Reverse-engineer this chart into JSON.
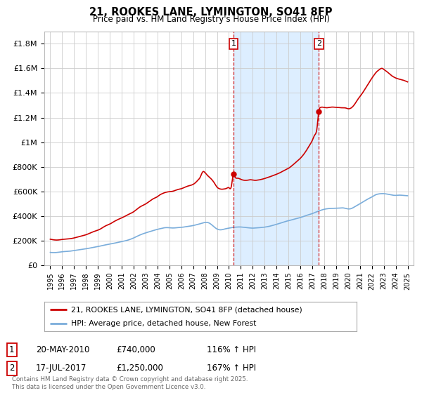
{
  "title": "21, ROOKES LANE, LYMINGTON, SO41 8FP",
  "subtitle": "Price paid vs. HM Land Registry's House Price Index (HPI)",
  "ylabel_ticks": [
    "£0",
    "£200K",
    "£400K",
    "£600K",
    "£800K",
    "£1M",
    "£1.2M",
    "£1.4M",
    "£1.6M",
    "£1.8M"
  ],
  "ytick_values": [
    0,
    200000,
    400000,
    600000,
    800000,
    1000000,
    1200000,
    1400000,
    1600000,
    1800000
  ],
  "ylim": [
    0,
    1900000
  ],
  "xlim_start": 1994.5,
  "xlim_end": 2025.5,
  "sale1_x": 2010.38,
  "sale1_y": 740000,
  "sale2_x": 2017.54,
  "sale2_y": 1250000,
  "legend_line1": "21, ROOKES LANE, LYMINGTON, SO41 8FP (detached house)",
  "legend_line2": "HPI: Average price, detached house, New Forest",
  "annotation1_date": "20-MAY-2010",
  "annotation1_price": "£740,000",
  "annotation1_hpi": "116% ↑ HPI",
  "annotation2_date": "17-JUL-2017",
  "annotation2_price": "£1,250,000",
  "annotation2_hpi": "167% ↑ HPI",
  "footer": "Contains HM Land Registry data © Crown copyright and database right 2025.\nThis data is licensed under the Open Government Licence v3.0.",
  "line1_color": "#cc0000",
  "line2_color": "#7aaddb",
  "shade_color": "#ddeeff",
  "background_color": "#ffffff",
  "grid_color": "#cccccc",
  "hpi_anchors": [
    [
      1995.0,
      105000
    ],
    [
      1995.3,
      103000
    ],
    [
      1995.7,
      106000
    ],
    [
      1996.0,
      110000
    ],
    [
      1996.5,
      113000
    ],
    [
      1997.0,
      120000
    ],
    [
      1997.5,
      127000
    ],
    [
      1998.0,
      134000
    ],
    [
      1998.5,
      143000
    ],
    [
      1999.0,
      152000
    ],
    [
      1999.5,
      163000
    ],
    [
      2000.0,
      172000
    ],
    [
      2000.5,
      182000
    ],
    [
      2001.0,
      192000
    ],
    [
      2001.5,
      204000
    ],
    [
      2002.0,
      222000
    ],
    [
      2002.5,
      245000
    ],
    [
      2003.0,
      263000
    ],
    [
      2003.5,
      278000
    ],
    [
      2004.0,
      292000
    ],
    [
      2004.3,
      299000
    ],
    [
      2004.6,
      305000
    ],
    [
      2005.0,
      305000
    ],
    [
      2005.3,
      303000
    ],
    [
      2005.6,
      305000
    ],
    [
      2006.0,
      308000
    ],
    [
      2006.3,
      312000
    ],
    [
      2006.6,
      316000
    ],
    [
      2007.0,
      323000
    ],
    [
      2007.3,
      330000
    ],
    [
      2007.6,
      338000
    ],
    [
      2008.0,
      348000
    ],
    [
      2008.3,
      345000
    ],
    [
      2008.6,
      325000
    ],
    [
      2009.0,
      295000
    ],
    [
      2009.3,
      288000
    ],
    [
      2009.5,
      291000
    ],
    [
      2009.7,
      296000
    ],
    [
      2010.0,
      302000
    ],
    [
      2010.3,
      307000
    ],
    [
      2010.6,
      310000
    ],
    [
      2011.0,
      311000
    ],
    [
      2011.3,
      308000
    ],
    [
      2011.6,
      305000
    ],
    [
      2012.0,
      302000
    ],
    [
      2012.3,
      304000
    ],
    [
      2012.6,
      306000
    ],
    [
      2013.0,
      310000
    ],
    [
      2013.3,
      315000
    ],
    [
      2013.6,
      322000
    ],
    [
      2014.0,
      333000
    ],
    [
      2014.3,
      342000
    ],
    [
      2014.6,
      352000
    ],
    [
      2015.0,
      362000
    ],
    [
      2015.3,
      370000
    ],
    [
      2015.6,
      378000
    ],
    [
      2016.0,
      388000
    ],
    [
      2016.3,
      398000
    ],
    [
      2016.6,
      408000
    ],
    [
      2017.0,
      420000
    ],
    [
      2017.3,
      432000
    ],
    [
      2017.6,
      443000
    ],
    [
      2018.0,
      455000
    ],
    [
      2018.3,
      460000
    ],
    [
      2018.6,
      462000
    ],
    [
      2019.0,
      463000
    ],
    [
      2019.3,
      465000
    ],
    [
      2019.6,
      466000
    ],
    [
      2020.0,
      458000
    ],
    [
      2020.3,
      462000
    ],
    [
      2020.6,
      478000
    ],
    [
      2021.0,
      500000
    ],
    [
      2021.3,
      518000
    ],
    [
      2021.6,
      535000
    ],
    [
      2022.0,
      555000
    ],
    [
      2022.3,
      572000
    ],
    [
      2022.6,
      580000
    ],
    [
      2023.0,
      582000
    ],
    [
      2023.3,
      578000
    ],
    [
      2023.6,
      572000
    ],
    [
      2024.0,
      568000
    ],
    [
      2024.3,
      570000
    ],
    [
      2024.6,
      568000
    ],
    [
      2025.0,
      565000
    ]
  ],
  "prop_anchors": [
    [
      1995.0,
      212000
    ],
    [
      1995.2,
      208000
    ],
    [
      1995.5,
      205000
    ],
    [
      1995.8,
      207000
    ],
    [
      1996.0,
      210000
    ],
    [
      1996.3,
      212000
    ],
    [
      1996.6,
      215000
    ],
    [
      1997.0,
      222000
    ],
    [
      1997.3,
      230000
    ],
    [
      1997.6,
      238000
    ],
    [
      1998.0,
      248000
    ],
    [
      1998.3,
      260000
    ],
    [
      1998.6,
      272000
    ],
    [
      1999.0,
      285000
    ],
    [
      1999.3,
      300000
    ],
    [
      1999.6,
      318000
    ],
    [
      2000.0,
      335000
    ],
    [
      2000.3,
      352000
    ],
    [
      2000.6,
      368000
    ],
    [
      2001.0,
      385000
    ],
    [
      2001.3,
      400000
    ],
    [
      2001.6,
      415000
    ],
    [
      2002.0,
      435000
    ],
    [
      2002.3,
      458000
    ],
    [
      2002.6,
      478000
    ],
    [
      2003.0,
      498000
    ],
    [
      2003.3,
      518000
    ],
    [
      2003.6,
      538000
    ],
    [
      2004.0,
      558000
    ],
    [
      2004.2,
      572000
    ],
    [
      2004.4,
      582000
    ],
    [
      2004.6,
      590000
    ],
    [
      2004.8,
      595000
    ],
    [
      2005.0,
      598000
    ],
    [
      2005.2,
      600000
    ],
    [
      2005.4,
      605000
    ],
    [
      2005.6,
      612000
    ],
    [
      2005.8,
      618000
    ],
    [
      2006.0,
      622000
    ],
    [
      2006.2,
      630000
    ],
    [
      2006.4,
      638000
    ],
    [
      2006.6,
      645000
    ],
    [
      2006.8,
      650000
    ],
    [
      2007.0,
      658000
    ],
    [
      2007.2,
      672000
    ],
    [
      2007.4,
      692000
    ],
    [
      2007.6,
      718000
    ],
    [
      2007.75,
      752000
    ],
    [
      2007.85,
      762000
    ],
    [
      2008.0,
      752000
    ],
    [
      2008.2,
      730000
    ],
    [
      2008.4,
      712000
    ],
    [
      2008.6,
      692000
    ],
    [
      2008.8,
      665000
    ],
    [
      2009.0,
      635000
    ],
    [
      2009.2,
      622000
    ],
    [
      2009.4,
      618000
    ],
    [
      2009.6,
      620000
    ],
    [
      2009.8,
      625000
    ],
    [
      2010.0,
      630000
    ],
    [
      2010.2,
      640000
    ],
    [
      2010.38,
      740000
    ],
    [
      2010.5,
      720000
    ],
    [
      2010.7,
      708000
    ],
    [
      2011.0,
      698000
    ],
    [
      2011.2,
      692000
    ],
    [
      2011.4,
      690000
    ],
    [
      2011.6,
      692000
    ],
    [
      2011.8,
      695000
    ],
    [
      2012.0,
      692000
    ],
    [
      2012.2,
      690000
    ],
    [
      2012.4,
      692000
    ],
    [
      2012.6,
      695000
    ],
    [
      2012.8,
      700000
    ],
    [
      2013.0,
      705000
    ],
    [
      2013.2,
      712000
    ],
    [
      2013.4,
      718000
    ],
    [
      2013.6,
      725000
    ],
    [
      2013.8,
      732000
    ],
    [
      2014.0,
      740000
    ],
    [
      2014.2,
      748000
    ],
    [
      2014.4,
      758000
    ],
    [
      2014.6,
      768000
    ],
    [
      2014.8,
      778000
    ],
    [
      2015.0,
      788000
    ],
    [
      2015.2,
      802000
    ],
    [
      2015.4,
      818000
    ],
    [
      2015.6,
      835000
    ],
    [
      2015.8,
      852000
    ],
    [
      2016.0,
      870000
    ],
    [
      2016.2,
      892000
    ],
    [
      2016.4,
      918000
    ],
    [
      2016.6,
      948000
    ],
    [
      2016.8,
      980000
    ],
    [
      2017.0,
      1015000
    ],
    [
      2017.2,
      1058000
    ],
    [
      2017.4,
      1120000
    ],
    [
      2017.54,
      1250000
    ],
    [
      2017.65,
      1280000
    ],
    [
      2017.8,
      1285000
    ],
    [
      2018.0,
      1282000
    ],
    [
      2018.2,
      1280000
    ],
    [
      2018.4,
      1282000
    ],
    [
      2018.6,
      1285000
    ],
    [
      2018.8,
      1285000
    ],
    [
      2019.0,
      1283000
    ],
    [
      2019.2,
      1282000
    ],
    [
      2019.4,
      1280000
    ],
    [
      2019.6,
      1280000
    ],
    [
      2019.8,
      1278000
    ],
    [
      2020.0,
      1272000
    ],
    [
      2020.2,
      1275000
    ],
    [
      2020.4,
      1290000
    ],
    [
      2020.6,
      1315000
    ],
    [
      2020.8,
      1345000
    ],
    [
      2021.0,
      1372000
    ],
    [
      2021.2,
      1398000
    ],
    [
      2021.4,
      1428000
    ],
    [
      2021.6,
      1458000
    ],
    [
      2021.8,
      1490000
    ],
    [
      2022.0,
      1520000
    ],
    [
      2022.2,
      1548000
    ],
    [
      2022.4,
      1572000
    ],
    [
      2022.6,
      1588000
    ],
    [
      2022.75,
      1598000
    ],
    [
      2022.85,
      1600000
    ],
    [
      2023.0,
      1592000
    ],
    [
      2023.2,
      1578000
    ],
    [
      2023.4,
      1562000
    ],
    [
      2023.6,
      1545000
    ],
    [
      2023.8,
      1532000
    ],
    [
      2024.0,
      1522000
    ],
    [
      2024.2,
      1515000
    ],
    [
      2024.4,
      1510000
    ],
    [
      2024.6,
      1505000
    ],
    [
      2024.8,
      1498000
    ],
    [
      2025.0,
      1490000
    ]
  ]
}
